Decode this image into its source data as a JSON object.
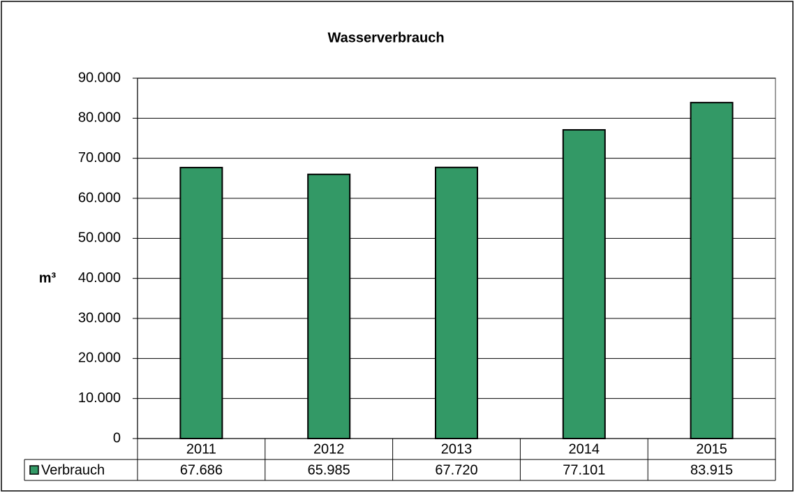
{
  "chart_data": {
    "type": "bar",
    "title": "Wasserverbrauch",
    "y_label": "m³",
    "categories": [
      "2011",
      "2012",
      "2013",
      "2014",
      "2015"
    ],
    "series": [
      {
        "name": "Verbrauch",
        "color": "#339966",
        "values": [
          67686,
          65985,
          67720,
          77101,
          83915
        ],
        "value_labels": [
          "67.686",
          "65.985",
          "67.720",
          "77.101",
          "83.915"
        ]
      }
    ],
    "ylim": [
      0,
      90000
    ],
    "yticks": [
      0,
      {
        "value": 10000,
        "label": "10.000"
      },
      {
        "value": 20000,
        "label": "20.000"
      },
      {
        "value": 30000,
        "label": "30.000"
      },
      {
        "value": 40000,
        "label": "40.000"
      },
      {
        "value": 50000,
        "label": "50.000"
      },
      {
        "value": 60000,
        "label": "60.000"
      },
      {
        "value": 70000,
        "label": "70.000"
      },
      {
        "value": 80000,
        "label": "80.000"
      },
      {
        "value": 90000,
        "label": "90.000"
      }
    ],
    "grid": true
  }
}
